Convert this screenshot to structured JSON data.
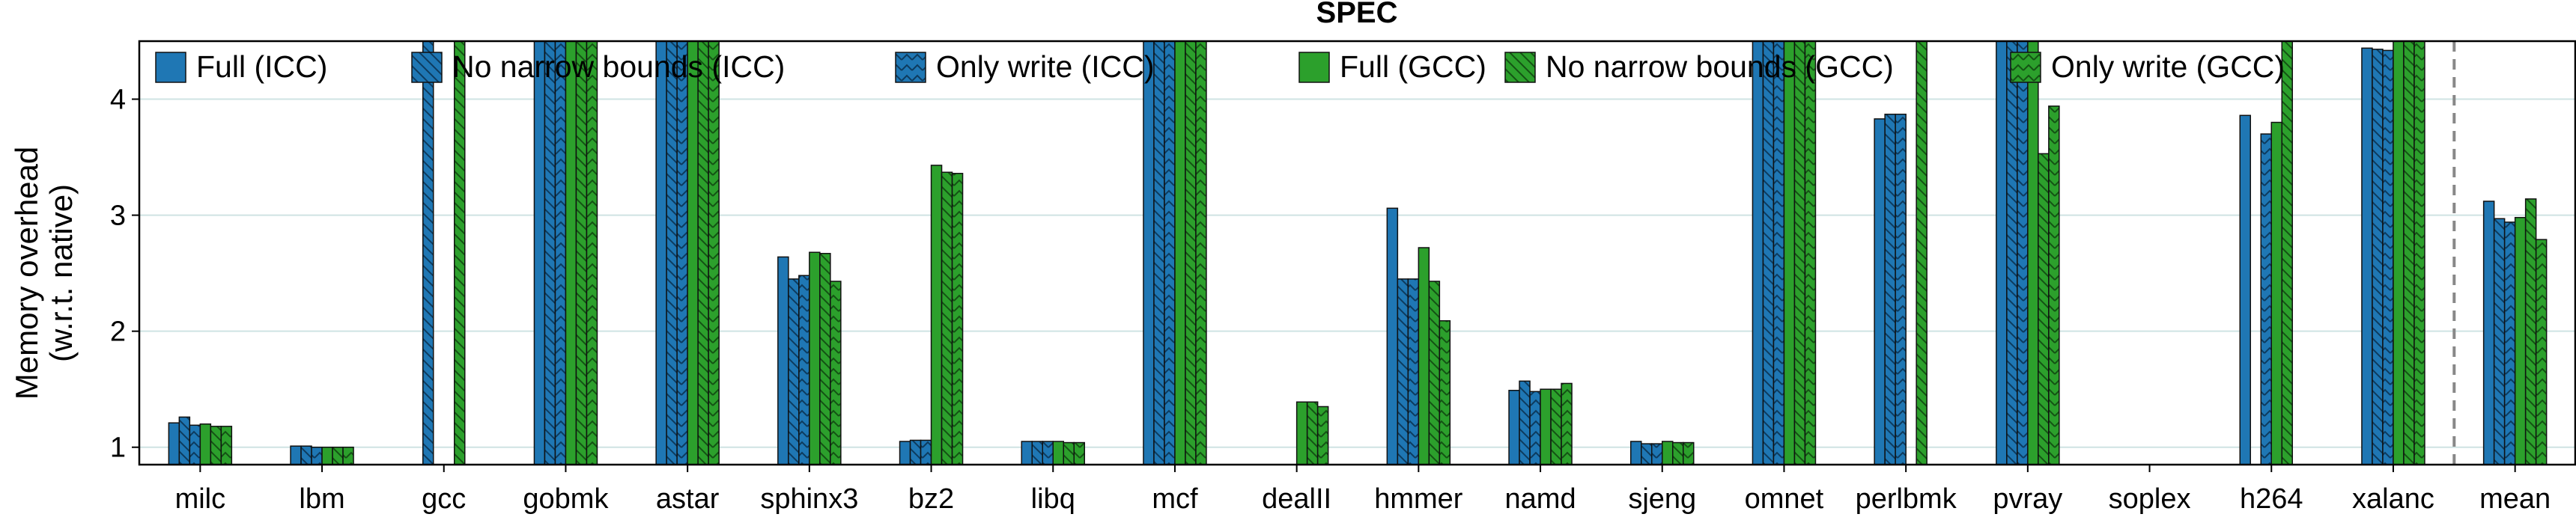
{
  "chart_data": {
    "type": "bar",
    "title": "SPEC",
    "ylabel": "Memory overhead",
    "ylabel_sub": "(w.r.t. native)",
    "ylim": [
      0.85,
      4.5
    ],
    "yticks": [
      "1",
      "2",
      "3",
      "4"
    ],
    "grid": "horizontal",
    "legend_placement": "top",
    "categories": [
      "milc",
      "lbm",
      "gcc",
      "gobmk",
      "astar",
      "sphinx3",
      "bz2",
      "libq",
      "mcf",
      "dealII",
      "hmmer",
      "namd",
      "sjeng",
      "omnet",
      "perlbmk",
      "pvray",
      "soplex",
      "h264",
      "xalanc",
      "mean"
    ],
    "separator_before_category": "mean",
    "series": [
      {
        "name": "Full (ICC)",
        "color": "#1f77b4",
        "pattern": "solid",
        "values": [
          1.21,
          1.01,
          null,
          4.6,
          4.6,
          2.64,
          1.05,
          1.05,
          4.6,
          null,
          3.06,
          1.49,
          1.05,
          4.6,
          3.83,
          4.6,
          null,
          3.86,
          4.44,
          3.12
        ]
      },
      {
        "name": "No narrow bounds (ICC)",
        "color": "#1f77b4",
        "pattern": "hatch-back",
        "values": [
          1.26,
          1.01,
          4.6,
          4.6,
          4.6,
          2.45,
          1.06,
          1.05,
          4.6,
          null,
          2.45,
          1.57,
          1.03,
          4.6,
          3.87,
          4.6,
          null,
          null,
          4.43,
          2.97
        ]
      },
      {
        "name": "Only write (ICC)",
        "color": "#1f77b4",
        "pattern": "chevron",
        "values": [
          1.19,
          1.0,
          null,
          4.6,
          4.6,
          2.48,
          1.06,
          1.05,
          4.6,
          null,
          2.45,
          1.48,
          1.03,
          4.6,
          3.87,
          4.6,
          null,
          3.7,
          4.42,
          2.94
        ]
      },
      {
        "name": "Full (GCC)",
        "color": "#2ca02c",
        "pattern": "solid",
        "values": [
          1.2,
          1.0,
          null,
          4.6,
          4.6,
          2.68,
          3.43,
          1.05,
          4.6,
          1.39,
          2.72,
          1.5,
          1.05,
          4.6,
          null,
          4.6,
          null,
          3.8,
          4.6,
          2.98
        ]
      },
      {
        "name": "No narrow bounds (GCC)",
        "color": "#2ca02c",
        "pattern": "hatch-back",
        "values": [
          1.18,
          1.0,
          4.6,
          4.6,
          4.6,
          2.67,
          3.37,
          1.04,
          4.6,
          1.39,
          2.43,
          1.5,
          1.04,
          4.6,
          4.6,
          3.53,
          null,
          4.6,
          4.6,
          3.14
        ]
      },
      {
        "name": "Only write (GCC)",
        "color": "#2ca02c",
        "pattern": "chevron",
        "values": [
          1.18,
          1.0,
          null,
          4.6,
          4.6,
          2.43,
          3.36,
          1.04,
          4.6,
          1.35,
          2.09,
          1.55,
          1.04,
          4.6,
          null,
          3.94,
          null,
          null,
          4.6,
          2.79
        ]
      }
    ]
  }
}
